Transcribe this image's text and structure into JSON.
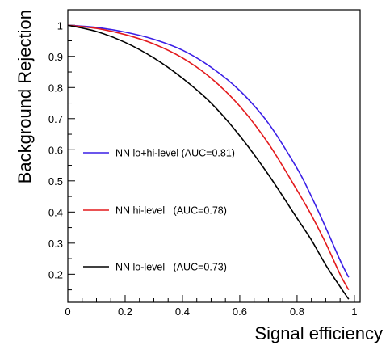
{
  "chart_data": {
    "type": "line",
    "title": "",
    "xlabel": "Signal efficiency",
    "ylabel": "Background Rejection",
    "xlim": [
      0,
      1.02
    ],
    "ylim": [
      0.11,
      1.05
    ],
    "x_ticks": [
      0,
      0.2,
      0.4,
      0.6,
      0.8,
      1
    ],
    "x_tick_labels": [
      "0",
      "0.2",
      "0.4",
      "0.6",
      "0.8",
      "1"
    ],
    "y_ticks": [
      0.2,
      0.3,
      0.4,
      0.5,
      0.6,
      0.7,
      0.8,
      0.9,
      1
    ],
    "y_tick_labels": [
      "0.2",
      "0.3",
      "0.4",
      "0.5",
      "0.6",
      "0.7",
      "0.8",
      "0.9",
      "1"
    ],
    "grid": false,
    "legend_position": "left",
    "series": [
      {
        "name": "NN lo+hi-level (AUC=0.81)",
        "color": "#3a1ee6",
        "x": [
          0,
          0.1,
          0.2,
          0.3,
          0.4,
          0.5,
          0.6,
          0.7,
          0.8,
          0.85,
          0.9,
          0.95,
          0.98
        ],
        "y": [
          1.0,
          0.993,
          0.978,
          0.955,
          0.92,
          0.865,
          0.79,
          0.685,
          0.54,
          0.45,
          0.35,
          0.245,
          0.19
        ]
      },
      {
        "name": "NN hi-level   (AUC=0.78)",
        "color": "#e3191c",
        "x": [
          0,
          0.1,
          0.2,
          0.3,
          0.4,
          0.5,
          0.6,
          0.7,
          0.8,
          0.85,
          0.9,
          0.95,
          0.98
        ],
        "y": [
          1.0,
          0.99,
          0.97,
          0.94,
          0.895,
          0.83,
          0.74,
          0.62,
          0.47,
          0.39,
          0.3,
          0.2,
          0.15
        ]
      },
      {
        "name": "NN lo-level   (AUC=0.73)",
        "color": "#000000",
        "x": [
          0,
          0.1,
          0.2,
          0.3,
          0.4,
          0.5,
          0.6,
          0.7,
          0.8,
          0.85,
          0.9,
          0.95,
          0.98
        ],
        "y": [
          1.0,
          0.98,
          0.945,
          0.895,
          0.83,
          0.75,
          0.645,
          0.52,
          0.38,
          0.31,
          0.23,
          0.16,
          0.12
        ]
      }
    ]
  }
}
